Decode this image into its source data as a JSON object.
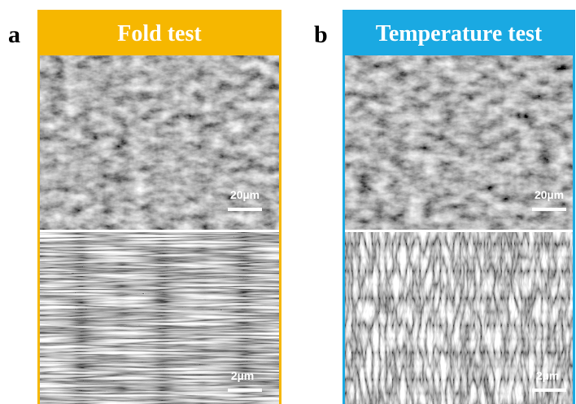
{
  "panels": [
    {
      "label": "a",
      "title": "Fold test",
      "images": [
        {
          "scale_bar": "20µm"
        },
        {
          "scale_bar": "2µm"
        }
      ]
    },
    {
      "label": "b",
      "title": "Temperature test",
      "images": [
        {
          "scale_bar": "20µm"
        },
        {
          "scale_bar": "2µm"
        }
      ]
    }
  ]
}
